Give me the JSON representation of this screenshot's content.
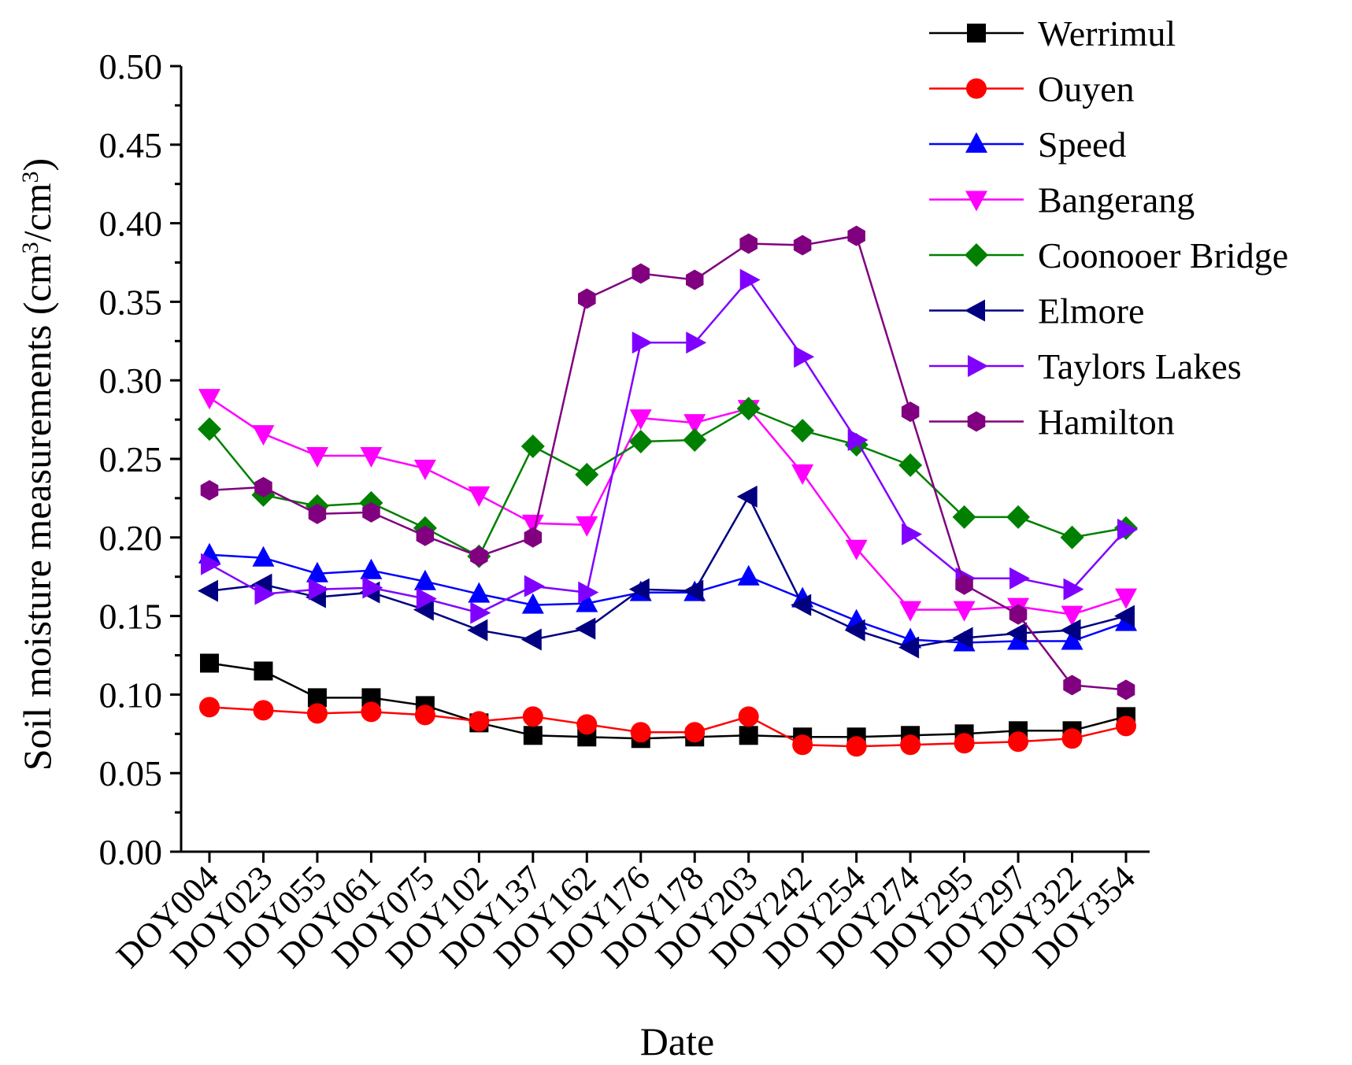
{
  "chart_data": {
    "type": "line",
    "title": "",
    "xlabel": "Date",
    "ylabel": "Soil moisture measurements (cm³/cm³)",
    "ylabel_parts": [
      "Soil moisture measurements (cm",
      "3",
      "/cm",
      "3",
      ")"
    ],
    "ylim": [
      0,
      0.5
    ],
    "yticks": [
      "0.00",
      "0.05",
      "0.10",
      "0.15",
      "0.20",
      "0.25",
      "0.30",
      "0.35",
      "0.40",
      "0.45",
      "0.50"
    ],
    "grid": false,
    "legend_position": "top-right",
    "categories": [
      "DOY004",
      "DOY023",
      "DOY055",
      "DOY061",
      "DOY075",
      "DOY102",
      "DOY137",
      "DOY162",
      "DOY176",
      "DOY178",
      "DOY203",
      "DOY242",
      "DOY254",
      "DOY274",
      "DOY295",
      "DOY297",
      "DOY322",
      "DOY354"
    ],
    "series": [
      {
        "name": "Werrimul",
        "color": "#000000",
        "marker": "square",
        "values": [
          0.12,
          0.115,
          0.098,
          0.098,
          0.093,
          0.082,
          0.074,
          0.073,
          0.072,
          0.073,
          0.074,
          0.073,
          0.073,
          0.074,
          0.075,
          0.077,
          0.077,
          0.086
        ]
      },
      {
        "name": "Ouyen",
        "color": "#ff0000",
        "marker": "circle",
        "values": [
          0.092,
          0.09,
          0.088,
          0.089,
          0.087,
          0.083,
          0.086,
          0.081,
          0.076,
          0.076,
          0.086,
          0.068,
          0.067,
          0.068,
          0.069,
          0.07,
          0.072,
          0.08
        ]
      },
      {
        "name": "Speed",
        "color": "#0000ff",
        "marker": "triangle-up",
        "values": [
          0.189,
          0.187,
          0.177,
          0.179,
          0.172,
          0.164,
          0.157,
          0.158,
          0.165,
          0.165,
          0.175,
          0.161,
          0.147,
          0.135,
          0.133,
          0.134,
          0.134,
          0.146
        ]
      },
      {
        "name": "Bangerang",
        "color": "#ff00ff",
        "marker": "triangle-down",
        "values": [
          0.289,
          0.266,
          0.252,
          0.252,
          0.244,
          0.227,
          0.209,
          0.208,
          0.276,
          0.273,
          0.282,
          0.241,
          0.193,
          0.154,
          0.154,
          0.156,
          0.151,
          0.162
        ]
      },
      {
        "name": "Coonooer Bridge",
        "color": "#008000",
        "marker": "diamond",
        "values": [
          0.269,
          0.227,
          0.22,
          0.222,
          0.206,
          0.188,
          0.258,
          0.24,
          0.261,
          0.262,
          0.282,
          0.268,
          0.259,
          0.246,
          0.213,
          0.213,
          0.2,
          0.206
        ]
      },
      {
        "name": "Elmore",
        "color": "#000080",
        "marker": "triangle-left",
        "values": [
          0.166,
          0.17,
          0.162,
          0.165,
          0.154,
          0.141,
          0.135,
          0.142,
          0.167,
          0.166,
          0.226,
          0.157,
          0.141,
          0.13,
          0.136,
          0.139,
          0.141,
          0.15
        ]
      },
      {
        "name": "Taylors Lakes",
        "color": "#8000ff",
        "marker": "triangle-right",
        "values": [
          0.183,
          0.164,
          0.167,
          0.168,
          0.161,
          0.152,
          0.169,
          0.165,
          0.324,
          0.324,
          0.364,
          0.315,
          0.262,
          0.202,
          0.174,
          0.174,
          0.167,
          0.205
        ]
      },
      {
        "name": "Hamilton",
        "color": "#800080",
        "marker": "hexagon",
        "values": [
          0.23,
          0.232,
          0.215,
          0.216,
          0.201,
          0.188,
          0.2,
          0.352,
          0.368,
          0.364,
          0.387,
          0.386,
          0.392,
          0.28,
          0.17,
          0.151,
          0.106,
          0.103
        ]
      }
    ]
  }
}
